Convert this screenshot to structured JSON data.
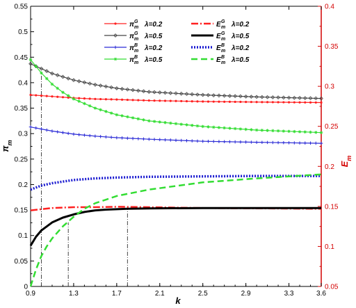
{
  "chart_data": {
    "type": "line",
    "xlabel": "k",
    "ylabel_left": "π_m",
    "ylabel_right": "E_m",
    "x_ticks": [
      "0.9",
      "1.3",
      "1.7",
      "2.1",
      "2.5",
      "2.9",
      "3.3",
      "3.6"
    ],
    "x_tick_values": [
      0.9,
      1.3,
      1.7,
      2.1,
      2.5,
      2.9,
      3.3,
      3.6
    ],
    "xlim": [
      0.9,
      3.6
    ],
    "ylim_left": [
      0,
      0.55
    ],
    "ylim_right": [
      0.05,
      0.4
    ],
    "y_ticks_left": [
      "0",
      "0.05",
      "0.1",
      "0.15",
      "0.2",
      "0.25",
      "0.3",
      "0.35",
      "0.4",
      "0.45",
      "0.5",
      "0.55"
    ],
    "y_ticks_right": [
      "0.05",
      "0.1",
      "0.15",
      "0.2",
      "0.25",
      "0.3",
      "0.35",
      "0.4"
    ],
    "grid": false,
    "legend_position": "top-center",
    "series": [
      {
        "sym": "π",
        "sup": "G",
        "lam": "λ=0.2",
        "axis": "left",
        "color": "#ff2020",
        "marker": "dot",
        "dash": "",
        "x": [
          0.9,
          1.1,
          1.3,
          1.5,
          1.7,
          2.0,
          2.5,
          3.0,
          3.6
        ],
        "y": [
          0.376,
          0.373,
          0.37,
          0.368,
          0.367,
          0.365,
          0.363,
          0.362,
          0.361
        ]
      },
      {
        "sym": "π",
        "sup": "G",
        "lam": "λ=0.5",
        "axis": "left",
        "color": "#444444",
        "marker": "diamond",
        "dash": "",
        "x": [
          0.9,
          1.1,
          1.3,
          1.5,
          1.7,
          2.0,
          2.5,
          3.0,
          3.6
        ],
        "y": [
          0.437,
          0.418,
          0.405,
          0.396,
          0.389,
          0.382,
          0.376,
          0.372,
          0.369
        ]
      },
      {
        "sym": "π",
        "sup": "B",
        "lam": "λ=0.2",
        "axis": "left",
        "color": "#2b2bd6",
        "marker": "plus",
        "dash": "",
        "x": [
          0.9,
          1.1,
          1.3,
          1.5,
          1.7,
          2.0,
          2.5,
          3.0,
          3.6
        ],
        "y": [
          0.313,
          0.305,
          0.299,
          0.295,
          0.292,
          0.289,
          0.285,
          0.283,
          0.281
        ]
      },
      {
        "sym": "π",
        "sup": "B",
        "lam": "λ=0.5",
        "axis": "left",
        "color": "#33dd33",
        "marker": "star",
        "dash": "",
        "x": [
          0.9,
          1.0,
          1.1,
          1.2,
          1.3,
          1.5,
          1.7,
          2.0,
          2.5,
          3.0,
          3.6
        ],
        "y": [
          0.445,
          0.419,
          0.397,
          0.381,
          0.368,
          0.35,
          0.337,
          0.325,
          0.314,
          0.307,
          0.302
        ]
      },
      {
        "sym": "E",
        "sup": "G",
        "lam": "λ=0.2",
        "axis": "right",
        "color": "#ff2020",
        "marker": "",
        "dash": "10 3 2 3",
        "width": 2.5,
        "x": [
          0.9,
          1.1,
          1.3,
          1.5,
          1.7,
          2.0,
          2.5,
          3.0,
          3.6
        ],
        "y": [
          0.145,
          0.148,
          0.149,
          0.149,
          0.1495,
          0.149,
          0.148,
          0.1475,
          0.147
        ]
      },
      {
        "sym": "E",
        "sup": "G",
        "lam": "λ=0.5",
        "axis": "right",
        "color": "#000000",
        "marker": "",
        "dash": "",
        "width": 3,
        "x": [
          0.9,
          0.95,
          1.0,
          1.1,
          1.2,
          1.3,
          1.4,
          1.5,
          1.6,
          1.8,
          2.0,
          2.5,
          3.0,
          3.6
        ],
        "y": [
          0.101,
          0.112,
          0.12,
          0.13,
          0.136,
          0.14,
          0.143,
          0.145,
          0.146,
          0.147,
          0.1475,
          0.148,
          0.148,
          0.148
        ]
      },
      {
        "sym": "E",
        "sup": "B",
        "lam": "λ=0.2",
        "axis": "right",
        "color": "#1a1ad0",
        "marker": "",
        "dash": "2 2",
        "width": 3.5,
        "x": [
          0.9,
          1.0,
          1.1,
          1.2,
          1.3,
          1.5,
          1.7,
          2.0,
          2.5,
          3.0,
          3.6
        ],
        "y": [
          0.171,
          0.176,
          0.179,
          0.181,
          0.183,
          0.185,
          0.186,
          0.187,
          0.1875,
          0.188,
          0.188
        ]
      },
      {
        "sym": "E",
        "sup": "B",
        "lam": "λ=0.5",
        "axis": "right",
        "color": "#33dd33",
        "marker": "",
        "dash": "9 5",
        "width": 2.5,
        "x": [
          0.9,
          0.95,
          1.0,
          1.05,
          1.1,
          1.2,
          1.3,
          1.4,
          1.5,
          1.7,
          2.0,
          2.5,
          3.0,
          3.6
        ],
        "y": [
          0.05,
          0.071,
          0.088,
          0.1,
          0.11,
          0.125,
          0.137,
          0.147,
          0.154,
          0.163,
          0.171,
          0.18,
          0.185,
          0.19
        ]
      }
    ],
    "annotations": {
      "vertical_lines": [
        {
          "x": 1.0,
          "axis": "left",
          "y_top": 0.419
        },
        {
          "x": 1.25,
          "axis": "right",
          "y_top": 0.13
        },
        {
          "x": 1.8,
          "axis": "right",
          "y_top": 0.147
        }
      ]
    }
  }
}
